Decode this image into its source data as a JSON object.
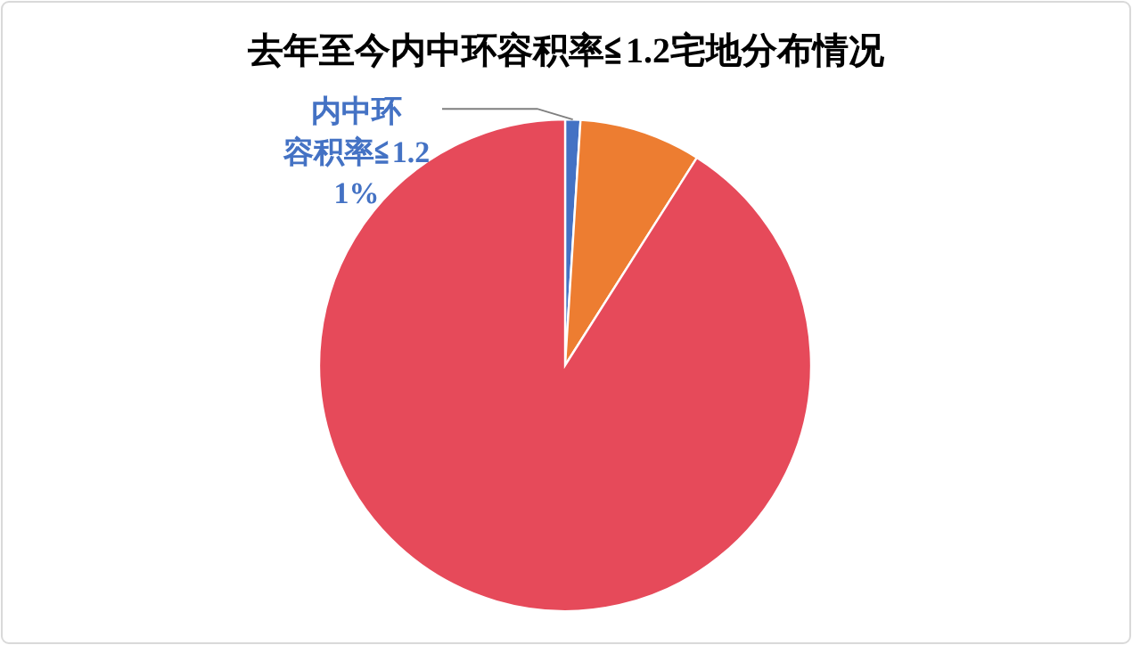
{
  "chart_data": {
    "type": "pie",
    "title": "去年至今内中环容积率≦1.2宅地分布情况",
    "categories": [
      "内中环容积率≦1.2",
      null,
      null
    ],
    "values": [
      1,
      8,
      91
    ],
    "value_labels": [
      "1%",
      null,
      null
    ],
    "colors": [
      "#4472c4",
      "#ed7d31",
      "#e64a5a"
    ]
  }
}
